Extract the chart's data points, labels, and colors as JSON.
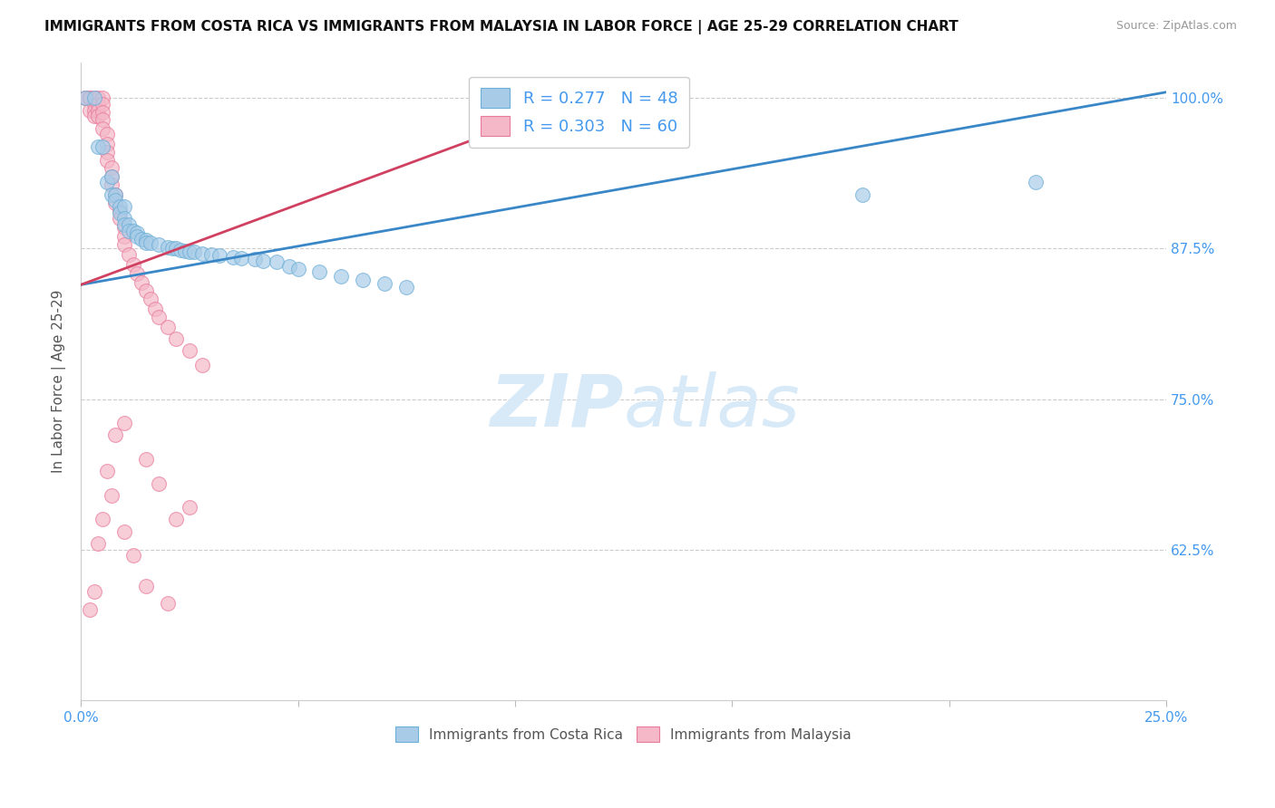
{
  "title": "IMMIGRANTS FROM COSTA RICA VS IMMIGRANTS FROM MALAYSIA IN LABOR FORCE | AGE 25-29 CORRELATION CHART",
  "source": "Source: ZipAtlas.com",
  "ylabel": "In Labor Force | Age 25-29",
  "legend_blue": "R = 0.277   N = 48",
  "legend_pink": "R = 0.303   N = 60",
  "watermark_zip": "ZIP",
  "watermark_atlas": "atlas",
  "blue_color": "#a8cce8",
  "pink_color": "#f4b8c8",
  "blue_edge_color": "#6baed6",
  "pink_edge_color": "#e87a9a",
  "blue_line_color": "#3a87c8",
  "pink_line_color": "#d04060",
  "blue_scatter": [
    [
      0.001,
      1.0
    ],
    [
      0.003,
      1.0
    ],
    [
      0.004,
      0.96
    ],
    [
      0.005,
      0.96
    ],
    [
      0.006,
      0.93
    ],
    [
      0.007,
      0.935
    ],
    [
      0.007,
      0.92
    ],
    [
      0.008,
      0.92
    ],
    [
      0.008,
      0.915
    ],
    [
      0.009,
      0.91
    ],
    [
      0.009,
      0.905
    ],
    [
      0.01,
      0.91
    ],
    [
      0.01,
      0.9
    ],
    [
      0.01,
      0.895
    ],
    [
      0.011,
      0.895
    ],
    [
      0.011,
      0.89
    ],
    [
      0.012,
      0.89
    ],
    [
      0.013,
      0.888
    ],
    [
      0.013,
      0.885
    ],
    [
      0.014,
      0.883
    ],
    [
      0.015,
      0.882
    ],
    [
      0.015,
      0.88
    ],
    [
      0.016,
      0.88
    ],
    [
      0.018,
      0.878
    ],
    [
      0.02,
      0.876
    ],
    [
      0.021,
      0.875
    ],
    [
      0.022,
      0.875
    ],
    [
      0.023,
      0.874
    ],
    [
      0.024,
      0.873
    ],
    [
      0.025,
      0.872
    ],
    [
      0.026,
      0.872
    ],
    [
      0.028,
      0.871
    ],
    [
      0.03,
      0.87
    ],
    [
      0.032,
      0.869
    ],
    [
      0.035,
      0.868
    ],
    [
      0.037,
      0.867
    ],
    [
      0.04,
      0.866
    ],
    [
      0.042,
      0.865
    ],
    [
      0.045,
      0.864
    ],
    [
      0.048,
      0.86
    ],
    [
      0.05,
      0.858
    ],
    [
      0.055,
      0.856
    ],
    [
      0.06,
      0.852
    ],
    [
      0.065,
      0.849
    ],
    [
      0.07,
      0.846
    ],
    [
      0.075,
      0.843
    ],
    [
      0.18,
      0.92
    ],
    [
      0.22,
      0.93
    ]
  ],
  "pink_scatter": [
    [
      0.001,
      1.0
    ],
    [
      0.001,
      1.0
    ],
    [
      0.002,
      1.0
    ],
    [
      0.002,
      1.0
    ],
    [
      0.002,
      0.99
    ],
    [
      0.003,
      1.0
    ],
    [
      0.003,
      0.995
    ],
    [
      0.003,
      0.99
    ],
    [
      0.003,
      0.985
    ],
    [
      0.004,
      1.0
    ],
    [
      0.004,
      0.995
    ],
    [
      0.004,
      0.99
    ],
    [
      0.004,
      0.985
    ],
    [
      0.005,
      1.0
    ],
    [
      0.005,
      0.995
    ],
    [
      0.005,
      0.988
    ],
    [
      0.005,
      0.982
    ],
    [
      0.005,
      0.975
    ],
    [
      0.006,
      0.97
    ],
    [
      0.006,
      0.962
    ],
    [
      0.006,
      0.955
    ],
    [
      0.006,
      0.948
    ],
    [
      0.007,
      0.942
    ],
    [
      0.007,
      0.935
    ],
    [
      0.007,
      0.928
    ],
    [
      0.008,
      0.92
    ],
    [
      0.008,
      0.913
    ],
    [
      0.009,
      0.906
    ],
    [
      0.009,
      0.9
    ],
    [
      0.01,
      0.893
    ],
    [
      0.01,
      0.885
    ],
    [
      0.01,
      0.878
    ],
    [
      0.011,
      0.87
    ],
    [
      0.012,
      0.862
    ],
    [
      0.013,
      0.854
    ],
    [
      0.014,
      0.847
    ],
    [
      0.015,
      0.84
    ],
    [
      0.016,
      0.833
    ],
    [
      0.017,
      0.825
    ],
    [
      0.018,
      0.818
    ],
    [
      0.02,
      0.81
    ],
    [
      0.022,
      0.8
    ],
    [
      0.025,
      0.79
    ],
    [
      0.028,
      0.778
    ],
    [
      0.015,
      0.7
    ],
    [
      0.018,
      0.68
    ],
    [
      0.01,
      0.64
    ],
    [
      0.012,
      0.62
    ],
    [
      0.015,
      0.595
    ],
    [
      0.02,
      0.58
    ],
    [
      0.022,
      0.65
    ],
    [
      0.025,
      0.66
    ],
    [
      0.008,
      0.72
    ],
    [
      0.01,
      0.73
    ],
    [
      0.006,
      0.69
    ],
    [
      0.007,
      0.67
    ],
    [
      0.005,
      0.65
    ],
    [
      0.004,
      0.63
    ],
    [
      0.003,
      0.59
    ],
    [
      0.002,
      0.575
    ]
  ],
  "xlim": [
    0.0,
    0.25
  ],
  "ylim": [
    0.5,
    1.03
  ],
  "yticks": [
    0.625,
    0.75,
    0.875,
    1.0
  ],
  "ytick_labels": [
    "62.5%",
    "75.0%",
    "87.5%",
    "100.0%"
  ],
  "xticks": [
    0.0,
    0.05,
    0.1,
    0.15,
    0.2,
    0.25
  ],
  "xtick_labels": [
    "0.0%",
    "",
    "",
    "",
    "",
    "25.0%"
  ],
  "blue_trend_x": [
    0.0,
    0.25
  ],
  "blue_trend_y": [
    0.845,
    1.005
  ],
  "pink_trend_x": [
    0.0,
    0.12
  ],
  "pink_trend_y": [
    0.845,
    1.005
  ]
}
